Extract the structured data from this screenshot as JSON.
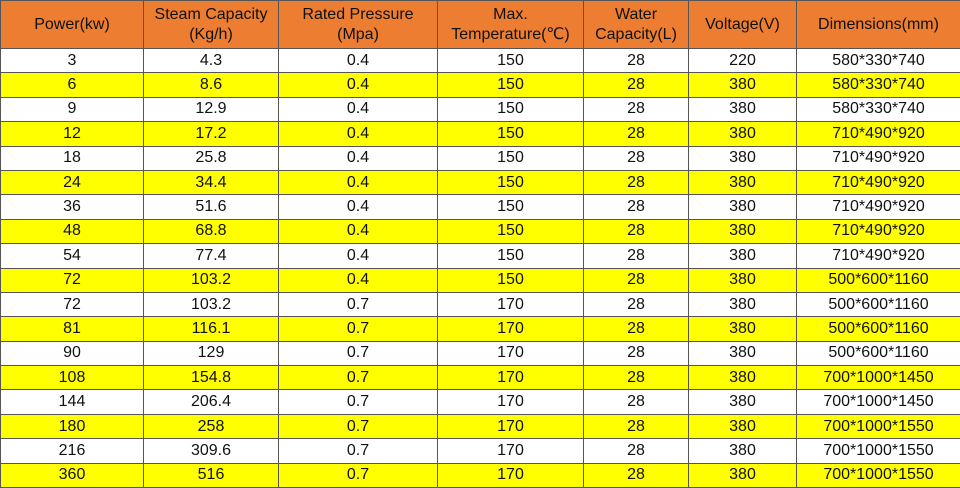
{
  "colors": {
    "header": "#ED7D31",
    "highlight": "#FFFF00",
    "plain": "#FFFFFF"
  },
  "headers": [
    [
      "Power(kw)",
      ""
    ],
    [
      "Steam Capacity",
      "(Kg/h)"
    ],
    [
      "Rated Pressure",
      "(Mpa)"
    ],
    [
      "Max.",
      "Temperature(℃)"
    ],
    [
      "Water",
      "Capacity(L)"
    ],
    [
      "Voltage(V)",
      ""
    ],
    [
      "Dimensions(mm)",
      ""
    ]
  ],
  "rows": [
    [
      "3",
      "4.3",
      "0.4",
      "150",
      "28",
      "220",
      "580*330*740"
    ],
    [
      "6",
      "8.6",
      "0.4",
      "150",
      "28",
      "380",
      "580*330*740"
    ],
    [
      "9",
      "12.9",
      "0.4",
      "150",
      "28",
      "380",
      "580*330*740"
    ],
    [
      "12",
      "17.2",
      "0.4",
      "150",
      "28",
      "380",
      "710*490*920"
    ],
    [
      "18",
      "25.8",
      "0.4",
      "150",
      "28",
      "380",
      "710*490*920"
    ],
    [
      "24",
      "34.4",
      "0.4",
      "150",
      "28",
      "380",
      "710*490*920"
    ],
    [
      "36",
      "51.6",
      "0.4",
      "150",
      "28",
      "380",
      "710*490*920"
    ],
    [
      "48",
      "68.8",
      "0.4",
      "150",
      "28",
      "380",
      "710*490*920"
    ],
    [
      "54",
      "77.4",
      "0.4",
      "150",
      "28",
      "380",
      "710*490*920"
    ],
    [
      "72",
      "103.2",
      "0.4",
      "150",
      "28",
      "380",
      "500*600*1160"
    ],
    [
      "72",
      "103.2",
      "0.7",
      "170",
      "28",
      "380",
      "500*600*1160"
    ],
    [
      "81",
      "116.1",
      "0.7",
      "170",
      "28",
      "380",
      "500*600*1160"
    ],
    [
      "90",
      "129",
      "0.7",
      "170",
      "28",
      "380",
      "500*600*1160"
    ],
    [
      "108",
      "154.8",
      "0.7",
      "170",
      "28",
      "380",
      "700*1000*1450"
    ],
    [
      "144",
      "206.4",
      "0.7",
      "170",
      "28",
      "380",
      "700*1000*1450"
    ],
    [
      "180",
      "258",
      "0.7",
      "170",
      "28",
      "380",
      "700*1000*1550"
    ],
    [
      "216",
      "309.6",
      "0.7",
      "170",
      "28",
      "380",
      "700*1000*1550"
    ],
    [
      "360",
      "516",
      "0.7",
      "170",
      "28",
      "380",
      "700*1000*1550"
    ]
  ]
}
